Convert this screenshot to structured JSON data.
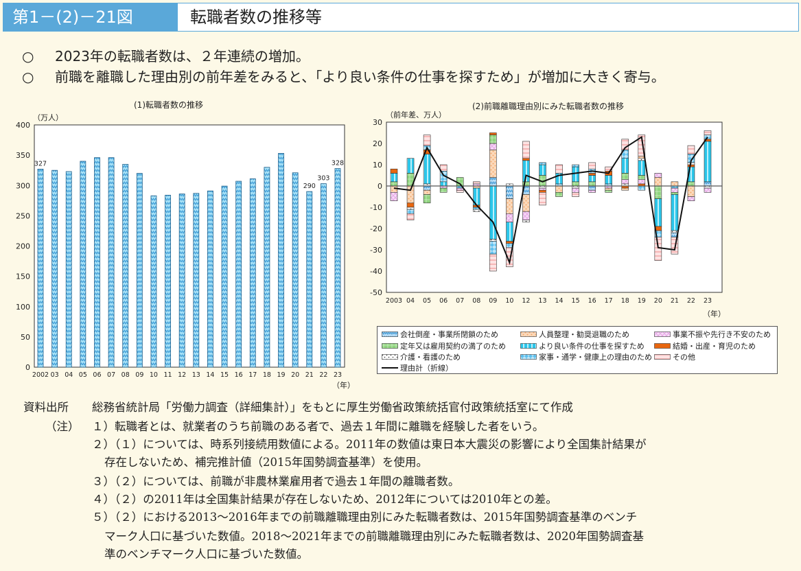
{
  "header": {
    "figure_no": "第1－(2)－21図",
    "title": "転職者数の推移等"
  },
  "bullets": [
    {
      "mark": "○",
      "text": "2023年の転職者数は、２年連続の増加。"
    },
    {
      "mark": "○",
      "text": "前職を離職した理由別の前年差をみると、「より良い条件の仕事を探すため」が増加に大きく寄与。"
    }
  ],
  "chart_data": [
    {
      "type": "bar",
      "title": "(1)転職者数の推移",
      "ylabel": "（万人）",
      "xlabel": "（年）",
      "ylim": [
        0,
        400
      ],
      "yticks": [
        0,
        50,
        100,
        150,
        200,
        250,
        300,
        350,
        400
      ],
      "categories": [
        "2002",
        "03",
        "04",
        "05",
        "06",
        "07",
        "08",
        "09",
        "10",
        "11",
        "12",
        "13",
        "14",
        "15",
        "16",
        "17",
        "18",
        "19",
        "20",
        "21",
        "22",
        "23"
      ],
      "values": [
        327,
        325,
        323,
        340,
        346,
        346,
        335,
        320,
        283,
        284,
        286,
        287,
        291,
        299,
        307,
        311,
        330,
        353,
        321,
        290,
        303,
        328
      ],
      "data_labels": {
        "2002": "327",
        "21": "290",
        "22": "303",
        "23": "328"
      }
    },
    {
      "type": "bar",
      "stacked": true,
      "title": "(2)前職離職理由別にみた転職者数の推移",
      "ylabel": "（前年差、万人）",
      "xlabel": "（年）",
      "ylim": [
        -50,
        30
      ],
      "yticks": [
        30,
        20,
        10,
        0,
        -10,
        -20,
        -30,
        -40,
        -50
      ],
      "categories": [
        "2003",
        "04",
        "05",
        "06",
        "07",
        "08",
        "09",
        "10",
        "12",
        "13",
        "14",
        "15",
        "16",
        "17",
        "18",
        "19",
        "20",
        "21",
        "22",
        "23"
      ],
      "series_names": [
        "会社倒産・事業所閉鎖のため",
        "人員整理・勧奨退職のため",
        "事業不振や先行き不安のため",
        "定年又は雇用契約の満了のため",
        "より良い条件の仕事を探すため",
        "結婚・出産・育児のため",
        "介護・看護のため",
        "家事・通学・健康上の理由のため",
        "その他"
      ],
      "series_colors": [
        "#4a9fd8",
        "#f5a86a",
        "#e7a6e6",
        "#8fd47e",
        "#2cc6ea",
        "#e8660f",
        "#ffffff",
        "#5ec0ee",
        "#f6b7b7"
      ],
      "segments": [
        [
          [
            3,
            2
          ],
          [
            4,
            4
          ],
          [
            5,
            2
          ],
          [
            1,
            -3
          ],
          [
            2,
            -4
          ]
        ],
        [
          [
            3,
            6
          ],
          [
            4,
            7
          ],
          [
            1,
            -8
          ],
          [
            5,
            -2
          ],
          [
            6,
            -1
          ],
          [
            7,
            -2
          ],
          [
            8,
            -3
          ]
        ],
        [
          [
            6,
            1
          ],
          [
            4,
            14
          ],
          [
            5,
            2
          ],
          [
            7,
            2
          ],
          [
            8,
            5
          ],
          [
            0,
            -2
          ],
          [
            1,
            -2
          ],
          [
            3,
            -4
          ]
        ],
        [
          [
            4,
            2
          ],
          [
            7,
            5
          ],
          [
            8,
            3
          ],
          [
            2,
            -1
          ],
          [
            3,
            -2
          ]
        ],
        [
          [
            3,
            4
          ],
          [
            7,
            -1
          ],
          [
            2,
            -1
          ],
          [
            8,
            -1
          ]
        ],
        [
          [
            2,
            1
          ],
          [
            8,
            1
          ],
          [
            1,
            -1
          ],
          [
            4,
            -8
          ],
          [
            5,
            -1
          ],
          [
            7,
            -1
          ],
          [
            6,
            -1
          ]
        ],
        [
          [
            0,
            4
          ],
          [
            1,
            13
          ],
          [
            2,
            3
          ],
          [
            3,
            4
          ],
          [
            5,
            1
          ],
          [
            4,
            -25
          ],
          [
            6,
            -1
          ],
          [
            7,
            -6
          ],
          [
            8,
            -8
          ]
        ],
        [
          [
            6,
            1
          ],
          [
            0,
            -6
          ],
          [
            1,
            -7
          ],
          [
            2,
            -4
          ],
          [
            4,
            -9
          ],
          [
            5,
            -1
          ],
          [
            7,
            -2
          ],
          [
            8,
            -9
          ]
        ],
        [
          [
            3,
            2
          ],
          [
            4,
            10
          ],
          [
            5,
            1
          ],
          [
            8,
            8
          ],
          [
            0,
            -4
          ],
          [
            1,
            -8
          ],
          [
            2,
            -4
          ],
          [
            6,
            -1
          ]
        ],
        [
          [
            3,
            5
          ],
          [
            4,
            5
          ],
          [
            7,
            1
          ],
          [
            6,
            -1
          ],
          [
            2,
            -1
          ],
          [
            5,
            -1
          ],
          [
            8,
            -6
          ]
        ],
        [
          [
            7,
            1
          ],
          [
            4,
            5
          ],
          [
            8,
            4
          ],
          [
            1,
            -3
          ],
          [
            3,
            -2
          ]
        ],
        [
          [
            3,
            2
          ],
          [
            4,
            7
          ],
          [
            7,
            1
          ],
          [
            6,
            -1
          ],
          [
            2,
            -2
          ],
          [
            8,
            -2
          ]
        ],
        [
          [
            3,
            2
          ],
          [
            4,
            3
          ],
          [
            5,
            1
          ],
          [
            7,
            2
          ],
          [
            8,
            3
          ],
          [
            0,
            -2
          ],
          [
            2,
            -1
          ]
        ],
        [
          [
            7,
            1
          ],
          [
            4,
            4
          ],
          [
            5,
            2
          ],
          [
            8,
            2
          ],
          [
            2,
            -1
          ],
          [
            1,
            -1
          ],
          [
            3,
            -1
          ]
        ],
        [
          [
            6,
            1
          ],
          [
            2,
            2
          ],
          [
            3,
            3
          ],
          [
            4,
            7
          ],
          [
            7,
            4
          ],
          [
            8,
            5
          ],
          [
            5,
            -1
          ],
          [
            1,
            -1
          ]
        ],
        [
          [
            5,
            1
          ],
          [
            2,
            2
          ],
          [
            3,
            2
          ],
          [
            4,
            7
          ],
          [
            6,
            1
          ],
          [
            1,
            1
          ],
          [
            8,
            10
          ],
          [
            7,
            -2
          ]
        ],
        [
          [
            1,
            4
          ],
          [
            2,
            2
          ],
          [
            3,
            -6
          ],
          [
            4,
            -13
          ],
          [
            5,
            -2
          ],
          [
            7,
            -3
          ],
          [
            8,
            -11
          ]
        ],
        [
          [
            1,
            2
          ],
          [
            7,
            -1
          ],
          [
            2,
            -2
          ],
          [
            3,
            -1
          ],
          [
            4,
            -17
          ],
          [
            6,
            -1
          ],
          [
            0,
            -2
          ],
          [
            8,
            -8
          ]
        ],
        [
          [
            3,
            2
          ],
          [
            4,
            7
          ],
          [
            5,
            1
          ],
          [
            6,
            1
          ],
          [
            7,
            4
          ],
          [
            8,
            4
          ],
          [
            1,
            -5
          ],
          [
            2,
            -2
          ]
        ],
        [
          [
            0,
            2
          ],
          [
            4,
            19
          ],
          [
            5,
            1
          ],
          [
            7,
            2
          ],
          [
            8,
            2
          ],
          [
            6,
            -1
          ],
          [
            2,
            -2
          ]
        ]
      ],
      "line": {
        "name": "理由計（折線）",
        "values": [
          -1,
          -2,
          18,
          5,
          1,
          -9,
          -17,
          -36,
          5,
          2,
          5,
          6,
          7,
          6,
          18,
          23,
          -29,
          -30,
          12,
          23
        ]
      },
      "legend": "bottom"
    }
  ],
  "notes": {
    "source_label": "資料出所",
    "source_text": "総務省統計局「労働力調査（詳細集計）」をもとに厚生労働省政策統括官付政策統括室にて作成",
    "note_label": "（注）",
    "lines": [
      "１）転職者とは、就業者のうち前職のある者で、過去１年間に離職を経験した者をいう。",
      "２）（１）については、時系列接続用数値による。2011年の数値は東日本大震災の影響により全国集計結果が",
      "存在しないため、補完推計値（2015年国勢調査基準）を使用。",
      "３）（２）については、前職が非農林業雇用者で過去１年間の離職者数。",
      "４）（２）の2011年は全国集計結果が存在しないため、2012年については2010年との差。",
      "５）（２）における2013～2016年までの前職離職理由別にみた転職者数は、2015年国勢調査基準のベンチ",
      "マーク人口に基づいた数値。2018～2021年までの前職離職理由別にみた転職者数は、2020年国勢調査基",
      "準のベンチマーク人口に基づいた数値。"
    ]
  }
}
